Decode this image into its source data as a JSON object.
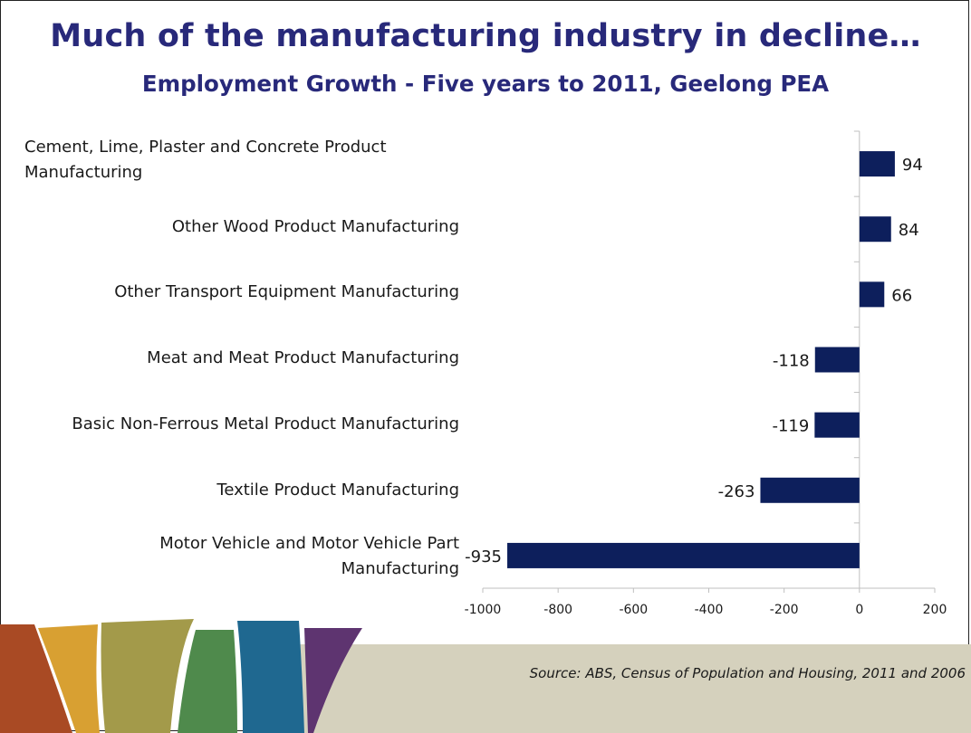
{
  "slide": {
    "title": "Much of the manufacturing industry in decline…",
    "subtitle": "Employment Growth - Five years to 2011, Geelong PEA",
    "source": "Source: ABS, Census of Population and Housing, 2011 and 2006"
  },
  "chart_data": {
    "type": "bar",
    "orientation": "horizontal",
    "title": "Employment Growth - Five years to 2011, Geelong PEA",
    "categories": [
      "Cement, Lime, Plaster and Concrete Product Manufacturing",
      "Other Wood Product Manufacturing",
      "Other Transport Equipment Manufacturing",
      "Meat and Meat Product Manufacturing",
      "Basic Non-Ferrous Metal Product Manufacturing",
      "Textile Product Manufacturing",
      "Motor Vehicle and Motor Vehicle Part Manufacturing"
    ],
    "values": [
      94,
      84,
      66,
      -118,
      -119,
      -263,
      -935
    ],
    "data_labels": [
      "94",
      "84",
      "66",
      "-118",
      "-119",
      "-263",
      "-935"
    ],
    "xlim": [
      -1000,
      200
    ],
    "xticks": [
      -1000,
      -800,
      -600,
      -400,
      -200,
      0,
      200
    ],
    "xtick_labels": [
      "-1000",
      "-800",
      "-600",
      "-400",
      "-200",
      "0",
      "200"
    ],
    "grid": false,
    "legend": "none",
    "bar_color": "#0d1f5c"
  },
  "colors": {
    "title": "#28297a",
    "footer_band": "#d5d1bd",
    "swoosh_colors": [
      "#a94a24",
      "#d8a032",
      "#a39a4a",
      "#4f8a4c",
      "#1f6890",
      "#5e3470"
    ]
  }
}
